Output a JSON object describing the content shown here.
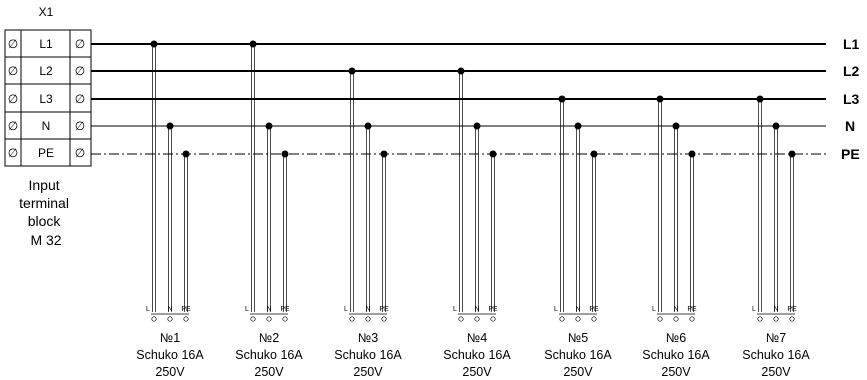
{
  "terminal_block": {
    "designator": "X1",
    "symbol": "∅",
    "rows": [
      "L1",
      "L2",
      "L3",
      "N",
      "PE"
    ],
    "caption_lines": [
      "Input",
      "terminal",
      "block",
      "M 32"
    ]
  },
  "buses": [
    {
      "id": "L1",
      "label": "L1",
      "style": "thick"
    },
    {
      "id": "L2",
      "label": "L2",
      "style": "thick"
    },
    {
      "id": "L3",
      "label": "L3",
      "style": "thick"
    },
    {
      "id": "N",
      "label": "N",
      "style": "thin"
    },
    {
      "id": "PE",
      "label": "PE",
      "style": "dash-dot"
    }
  ],
  "sockets": [
    {
      "number": "№1",
      "type": "Schuko 16A",
      "voltage": "250V",
      "phase": "L1"
    },
    {
      "number": "№2",
      "type": "Schuko 16A",
      "voltage": "250V",
      "phase": "L1"
    },
    {
      "number": "№3",
      "type": "Schuko 16A",
      "voltage": "250V",
      "phase": "L2"
    },
    {
      "number": "№4",
      "type": "Schuko 16A",
      "voltage": "250V",
      "phase": "L2"
    },
    {
      "number": "№5",
      "type": "Schuko 16A",
      "voltage": "250V",
      "phase": "L3"
    },
    {
      "number": "№6",
      "type": "Schuko 16A",
      "voltage": "250V",
      "phase": "L3"
    },
    {
      "number": "№7",
      "type": "Schuko 16A",
      "voltage": "250V",
      "phase": "L3"
    }
  ],
  "socket_pins": [
    "L",
    "N",
    "PE"
  ]
}
